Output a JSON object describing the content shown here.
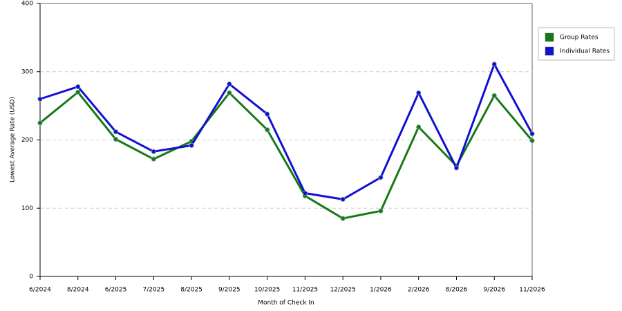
{
  "chart_data": {
    "type": "line",
    "x_label": "Month of Check In",
    "y_label": "Lowest Average Rate (USD)",
    "categories": [
      "6/2024",
      "8/2024",
      "6/2025",
      "7/2025",
      "8/2025",
      "9/2025",
      "10/2025",
      "11/2025",
      "12/2025",
      "1/2026",
      "2/2026",
      "8/2026",
      "9/2026",
      "11/2026"
    ],
    "series": [
      {
        "name": "Group Rates",
        "color": "#157a15",
        "values": [
          225,
          270,
          201,
          172,
          198,
          269,
          215,
          118,
          85,
          96,
          219,
          162,
          265,
          199
        ]
      },
      {
        "name": "Individual Rates",
        "color": "#1010d0",
        "values": [
          260,
          278,
          212,
          183,
          192,
          282,
          238,
          122,
          113,
          145,
          269,
          159,
          311,
          209
        ]
      }
    ],
    "ylim": [
      0,
      400
    ],
    "yticks": [
      0,
      100,
      200,
      300,
      400
    ],
    "grid": true,
    "legend": "right"
  }
}
